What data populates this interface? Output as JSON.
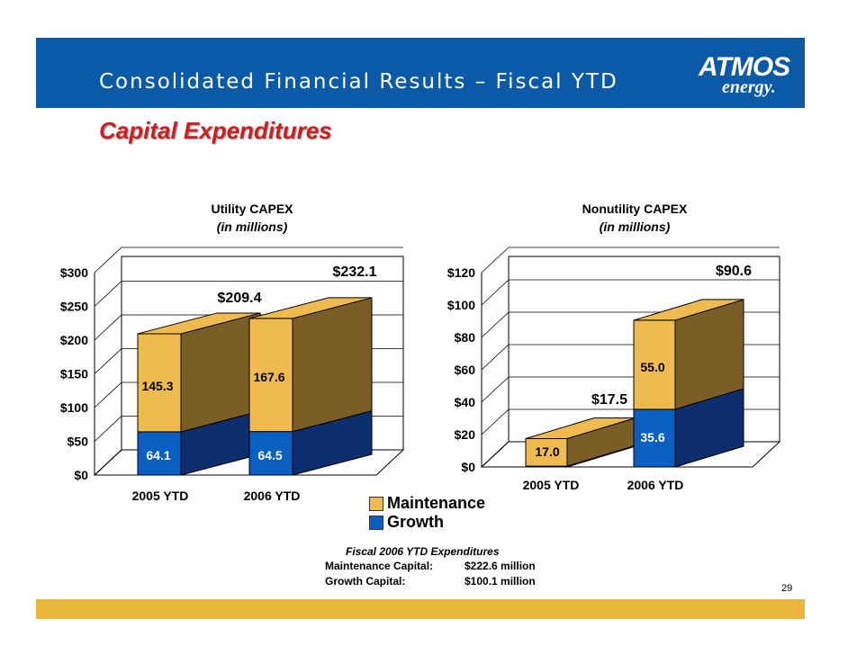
{
  "header": {
    "title": "Consolidated Financial Results – Fiscal YTD"
  },
  "logo": {
    "top": "ATMOS",
    "bottom": "energy."
  },
  "subtitle": "Capital Expenditures",
  "colors": {
    "maintenance": "#efbb4f",
    "growth": "#0a5fc2",
    "maintenance_dark": "#7a5e26",
    "growth_dark": "#0c2e6e",
    "header": "#0a5aa8",
    "footer": "#e9b73c",
    "subtitle": "#cc2020"
  },
  "chart_data": [
    {
      "type": "bar",
      "title": "Utility CAPEX",
      "subtitle": "(in millions)",
      "categories": [
        "2005 YTD",
        "2006 YTD"
      ],
      "series": [
        {
          "name": "Growth",
          "values": [
            64.1,
            64.5
          ],
          "labels": [
            "64.1",
            "64.5"
          ]
        },
        {
          "name": "Maintenance",
          "values": [
            145.3,
            167.6
          ],
          "labels": [
            "145.3",
            "167.6"
          ]
        }
      ],
      "totals": [
        "$209.4",
        "$232.1"
      ],
      "total_values": [
        209.4,
        232.1
      ],
      "y_ticks": [
        "$0",
        "$50",
        "$100",
        "$150",
        "$200",
        "$250",
        "$300"
      ],
      "y_tick_values": [
        0,
        50,
        100,
        150,
        200,
        250,
        300
      ],
      "ylim": [
        0,
        300
      ],
      "grid": true
    },
    {
      "type": "bar",
      "title": "Nonutility CAPEX",
      "subtitle": "(in millions)",
      "categories": [
        "2005 YTD",
        "2006 YTD"
      ],
      "series": [
        {
          "name": "Growth",
          "values": [
            0.5,
            35.6
          ],
          "labels": [
            "",
            "35.6"
          ]
        },
        {
          "name": "Maintenance",
          "values": [
            17.0,
            55.0
          ],
          "labels": [
            "17.0",
            "55.0"
          ]
        }
      ],
      "totals": [
        "$17.5",
        "$90.6"
      ],
      "total_values": [
        17.5,
        90.6
      ],
      "y_ticks": [
        "$0",
        "$20",
        "$40",
        "$60",
        "$80",
        "$100",
        "$120"
      ],
      "y_tick_values": [
        0,
        20,
        40,
        60,
        80,
        100,
        120
      ],
      "ylim": [
        0,
        120
      ],
      "grid": true
    }
  ],
  "legend": {
    "maintenance": "Maintenance",
    "growth": "Growth"
  },
  "summary": {
    "heading": "Fiscal 2006 YTD Expenditures",
    "rows": [
      {
        "label": "Maintenance Capital:",
        "value": "$222.6 million"
      },
      {
        "label": "Growth Capital:",
        "value": "$100.1 million"
      }
    ]
  },
  "page_number": "29"
}
